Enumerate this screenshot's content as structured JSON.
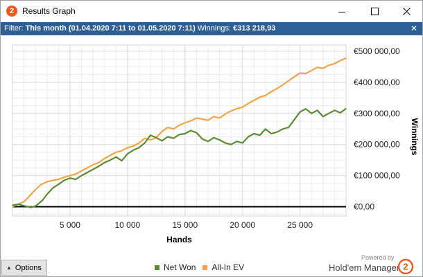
{
  "window": {
    "title": "Results Graph",
    "app_icon_glyph": "2",
    "icons": [
      "app-logo-icon",
      "minimize-icon",
      "maximize-icon",
      "close-icon"
    ]
  },
  "filter": {
    "prefix": "Filter: ",
    "period": "This month (01.04.2020 7:11 to 01.05.2020 7:11)",
    "winnings_label": "Winnings: ",
    "winnings_value": "€313 218,93",
    "close_glyph": "✕"
  },
  "chart_data": {
    "type": "line",
    "xlabel": "Hands",
    "ylabel": "Winnings",
    "xlim": [
      0,
      29000
    ],
    "ylim": [
      -30000,
      520000
    ],
    "x_ticks": [
      5000,
      10000,
      15000,
      20000,
      25000
    ],
    "x_tick_labels": [
      "5 000",
      "10 000",
      "15 000",
      "20 000",
      "25 000"
    ],
    "y_ticks": [
      0,
      100000,
      200000,
      300000,
      400000,
      500000
    ],
    "y_tick_labels": [
      "€0,00",
      "€100 000,00",
      "€200 000,00",
      "€300 000,00",
      "€400 000,00",
      "€500 000,00"
    ],
    "grid": true,
    "legend_position": "bottom",
    "series": [
      {
        "name": "Net Won",
        "color": "#5b8a32",
        "x": [
          0,
          500,
          1000,
          1600,
          2000,
          2600,
          3000,
          3500,
          4000,
          4500,
          5000,
          5500,
          6000,
          6500,
          7000,
          7500,
          8000,
          8500,
          9000,
          9500,
          10000,
          10500,
          11000,
          11500,
          12000,
          12500,
          13000,
          13500,
          14000,
          14500,
          15000,
          15500,
          16000,
          16500,
          17000,
          17500,
          18000,
          18500,
          19000,
          19500,
          20000,
          20500,
          21000,
          21500,
          22000,
          22500,
          23000,
          23500,
          24000,
          24500,
          25000,
          25500,
          26000,
          26500,
          27000,
          27500,
          28000,
          28500,
          29000
        ],
        "y": [
          5000,
          8000,
          3000,
          -2000,
          2000,
          20000,
          40000,
          60000,
          72000,
          85000,
          92000,
          88000,
          100000,
          110000,
          120000,
          130000,
          142000,
          150000,
          160000,
          148000,
          170000,
          182000,
          190000,
          205000,
          230000,
          222000,
          212000,
          225000,
          220000,
          232000,
          235000,
          245000,
          238000,
          218000,
          210000,
          222000,
          215000,
          205000,
          200000,
          210000,
          205000,
          225000,
          235000,
          230000,
          250000,
          235000,
          240000,
          250000,
          255000,
          280000,
          305000,
          315000,
          300000,
          310000,
          290000,
          300000,
          310000,
          302000,
          316000
        ]
      },
      {
        "name": "All-In EV",
        "color": "#f4a349",
        "x": [
          0,
          500,
          1000,
          1500,
          2000,
          2500,
          3000,
          3500,
          4000,
          4500,
          5000,
          5500,
          6000,
          6500,
          7000,
          7500,
          8000,
          8500,
          9000,
          9500,
          10000,
          10500,
          11000,
          11500,
          12000,
          12500,
          13000,
          13500,
          14000,
          14500,
          15000,
          15500,
          16000,
          16500,
          17000,
          17500,
          18000,
          18500,
          19000,
          19500,
          20000,
          20500,
          21000,
          21500,
          22000,
          22500,
          23000,
          23500,
          24000,
          24500,
          25000,
          25500,
          26000,
          26500,
          27000,
          27500,
          28000,
          28500,
          29000
        ],
        "y": [
          0,
          8000,
          16000,
          35000,
          55000,
          72000,
          80000,
          85000,
          88000,
          95000,
          100000,
          105000,
          115000,
          125000,
          135000,
          142000,
          155000,
          165000,
          175000,
          180000,
          190000,
          195000,
          205000,
          220000,
          215000,
          222000,
          242000,
          255000,
          250000,
          262000,
          270000,
          276000,
          285000,
          282000,
          278000,
          290000,
          285000,
          298000,
          308000,
          315000,
          320000,
          332000,
          342000,
          352000,
          358000,
          370000,
          380000,
          392000,
          405000,
          418000,
          430000,
          428000,
          438000,
          448000,
          445000,
          455000,
          460000,
          470000,
          478000
        ]
      }
    ]
  },
  "bottom": {
    "options_label": "Options",
    "options_arrow": "▲",
    "legend": [
      {
        "label": "Net Won",
        "color": "#5b8a32"
      },
      {
        "label": "All-In EV",
        "color": "#f4a349"
      }
    ],
    "powered_by": "Powered by",
    "brand_name": "Hold'em Manager",
    "brand_logo_glyph": "2",
    "brand_color": "#e8591a"
  }
}
